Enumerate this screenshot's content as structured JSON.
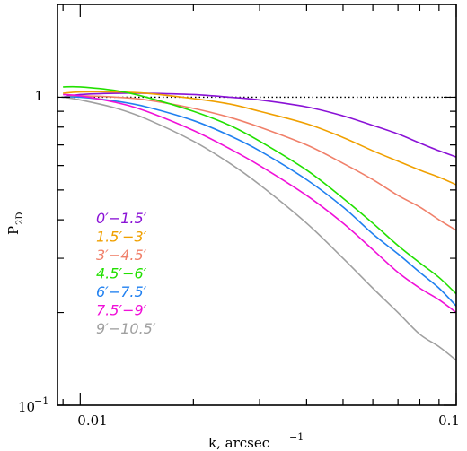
{
  "chart_data": {
    "type": "line",
    "xlabel": "k, arcsec",
    "xlabel_sup": "−1",
    "ylabel": "P",
    "ylabel_sub": "2D",
    "xscale": "log",
    "yscale": "log",
    "xlim": [
      0.0087,
      0.1
    ],
    "ylim": [
      0.1,
      2.0
    ],
    "x_tick_labels": [
      "0.01",
      "0.1"
    ],
    "y_tick_labels": [
      "10",
      "−1",
      "1"
    ],
    "reference_line": {
      "y": 1,
      "style": "dotted"
    },
    "legend_placement": "center-left",
    "x": [
      0.009,
      0.01,
      0.0125,
      0.015,
      0.02,
      0.025,
      0.03,
      0.04,
      0.05,
      0.06,
      0.07,
      0.08,
      0.09,
      0.1
    ],
    "series": [
      {
        "name": "0′−1.5′",
        "color": "#8a12d6",
        "values": [
          1.0,
          1.02,
          1.03,
          1.03,
          1.02,
          1.0,
          0.98,
          0.93,
          0.87,
          0.81,
          0.76,
          0.71,
          0.67,
          0.64
        ]
      },
      {
        "name": "1.5′−3′",
        "color": "#f0a000",
        "values": [
          1.03,
          1.04,
          1.04,
          1.03,
          0.99,
          0.95,
          0.9,
          0.82,
          0.74,
          0.67,
          0.62,
          0.58,
          0.55,
          0.52
        ]
      },
      {
        "name": "3′−4.5′",
        "color": "#f0806a",
        "values": [
          1.0,
          1.01,
          1.0,
          0.98,
          0.92,
          0.86,
          0.8,
          0.7,
          0.61,
          0.54,
          0.48,
          0.44,
          0.4,
          0.37
        ]
      },
      {
        "name": "4.5′−6′",
        "color": "#22e000",
        "values": [
          1.08,
          1.08,
          1.05,
          1.0,
          0.9,
          0.81,
          0.72,
          0.58,
          0.47,
          0.39,
          0.33,
          0.29,
          0.26,
          0.23
        ]
      },
      {
        "name": "6′−7.5′",
        "color": "#2080f0",
        "values": [
          1.0,
          1.0,
          0.97,
          0.93,
          0.84,
          0.75,
          0.67,
          0.54,
          0.44,
          0.36,
          0.31,
          0.27,
          0.24,
          0.21
        ]
      },
      {
        "name": "7.5′−9′",
        "color": "#f010d8",
        "values": [
          1.02,
          1.01,
          0.96,
          0.9,
          0.78,
          0.68,
          0.6,
          0.48,
          0.39,
          0.32,
          0.27,
          0.24,
          0.22,
          0.2
        ]
      },
      {
        "name": "9′−10.5′",
        "color": "#a0a0a0",
        "values": [
          1.0,
          0.98,
          0.92,
          0.85,
          0.72,
          0.61,
          0.52,
          0.39,
          0.3,
          0.24,
          0.2,
          0.17,
          0.155,
          0.14
        ]
      }
    ]
  }
}
